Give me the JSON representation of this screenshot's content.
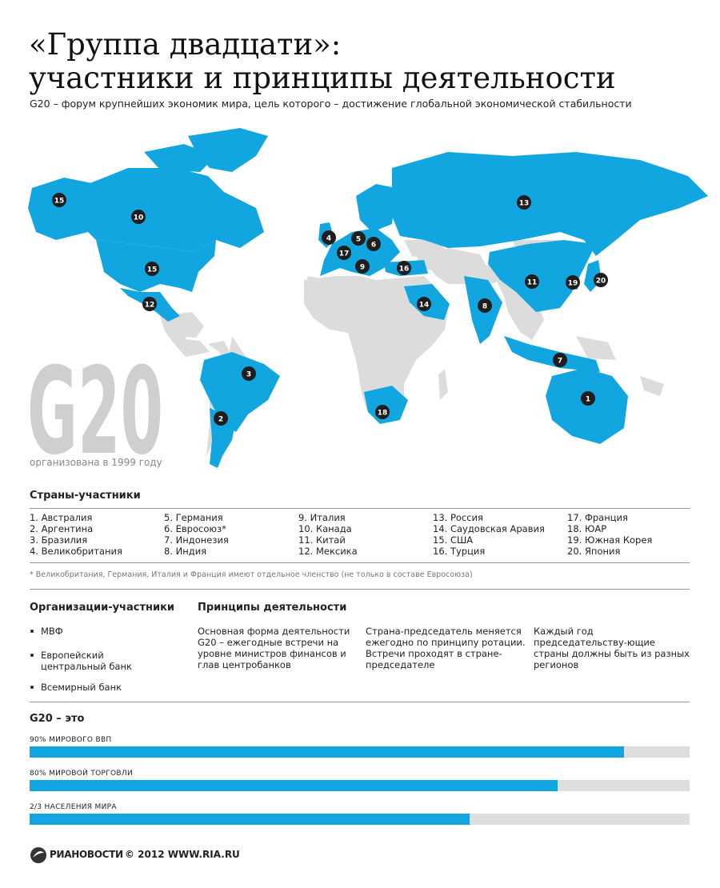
{
  "header": {
    "title_lines": [
      "«Группа двадцати»:",
      "участники и принципы деятельности"
    ],
    "subtitle": "G20 – форум крупнейших экономик мира, цель которого – достижение глобальной экономической стабильности"
  },
  "map": {
    "markers": [
      "15",
      "10",
      "15",
      "12",
      "4",
      "5",
      "6",
      "17",
      "9",
      "16",
      "13",
      "11",
      "19",
      "20",
      "14",
      "8",
      "7",
      "3",
      "2",
      "18",
      "1"
    ]
  },
  "g20": {
    "logo": "G20",
    "founded": "организована в 1999 году"
  },
  "members": {
    "title": "Страны-участники",
    "items": [
      "1. Австралия",
      "2. Аргентина",
      "3. Бразилия",
      "4. Великобритания",
      "5. Германия",
      "6. Евросоюз*",
      "7. Индонезия",
      "8. Индия",
      "9. Италия",
      "10. Канада",
      "11. Китай",
      "12. Мексика",
      "13. Россия",
      "14. Саудовская Аравия",
      "15. США",
      "16. Турция",
      "17. Франция",
      "18. ЮАР",
      "19. Южная Корея",
      "20. Япония"
    ],
    "footnote": "* Великобритания, Германия, Италия и Франция имеют отдельное членство (не только в составе Евросоюза)"
  },
  "organizations": {
    "title": "Организации-участники",
    "items": [
      "МВФ",
      "Европейский центральный банк",
      "Всемирный банк"
    ]
  },
  "principles": {
    "title": "Принципы деятельности",
    "items": [
      "Основная форма деятельности G20 – ежегодные встречи на уровне министров финансов и глав центробанков",
      "Страна-председатель меняется ежегодно по принципу ротации. Встречи проходят в стране-председателе",
      "Каждый год председательству-ющие страны должны быть из разных регионов"
    ]
  },
  "stats": {
    "title": "G20 – это",
    "xlim": [
      0,
      100
    ],
    "color": "#12a6e0",
    "track_color": "#dedede",
    "items": [
      {
        "label": "90% мирового ВВП",
        "value": 90
      },
      {
        "label": "80% мировой торговли",
        "value": 80
      },
      {
        "label": "2/3 населения мира",
        "value": 66.7
      }
    ]
  },
  "footer": {
    "brand": "РИАНОВОСТИ",
    "copyright": "© 2012 WWW.RIA.RU"
  }
}
